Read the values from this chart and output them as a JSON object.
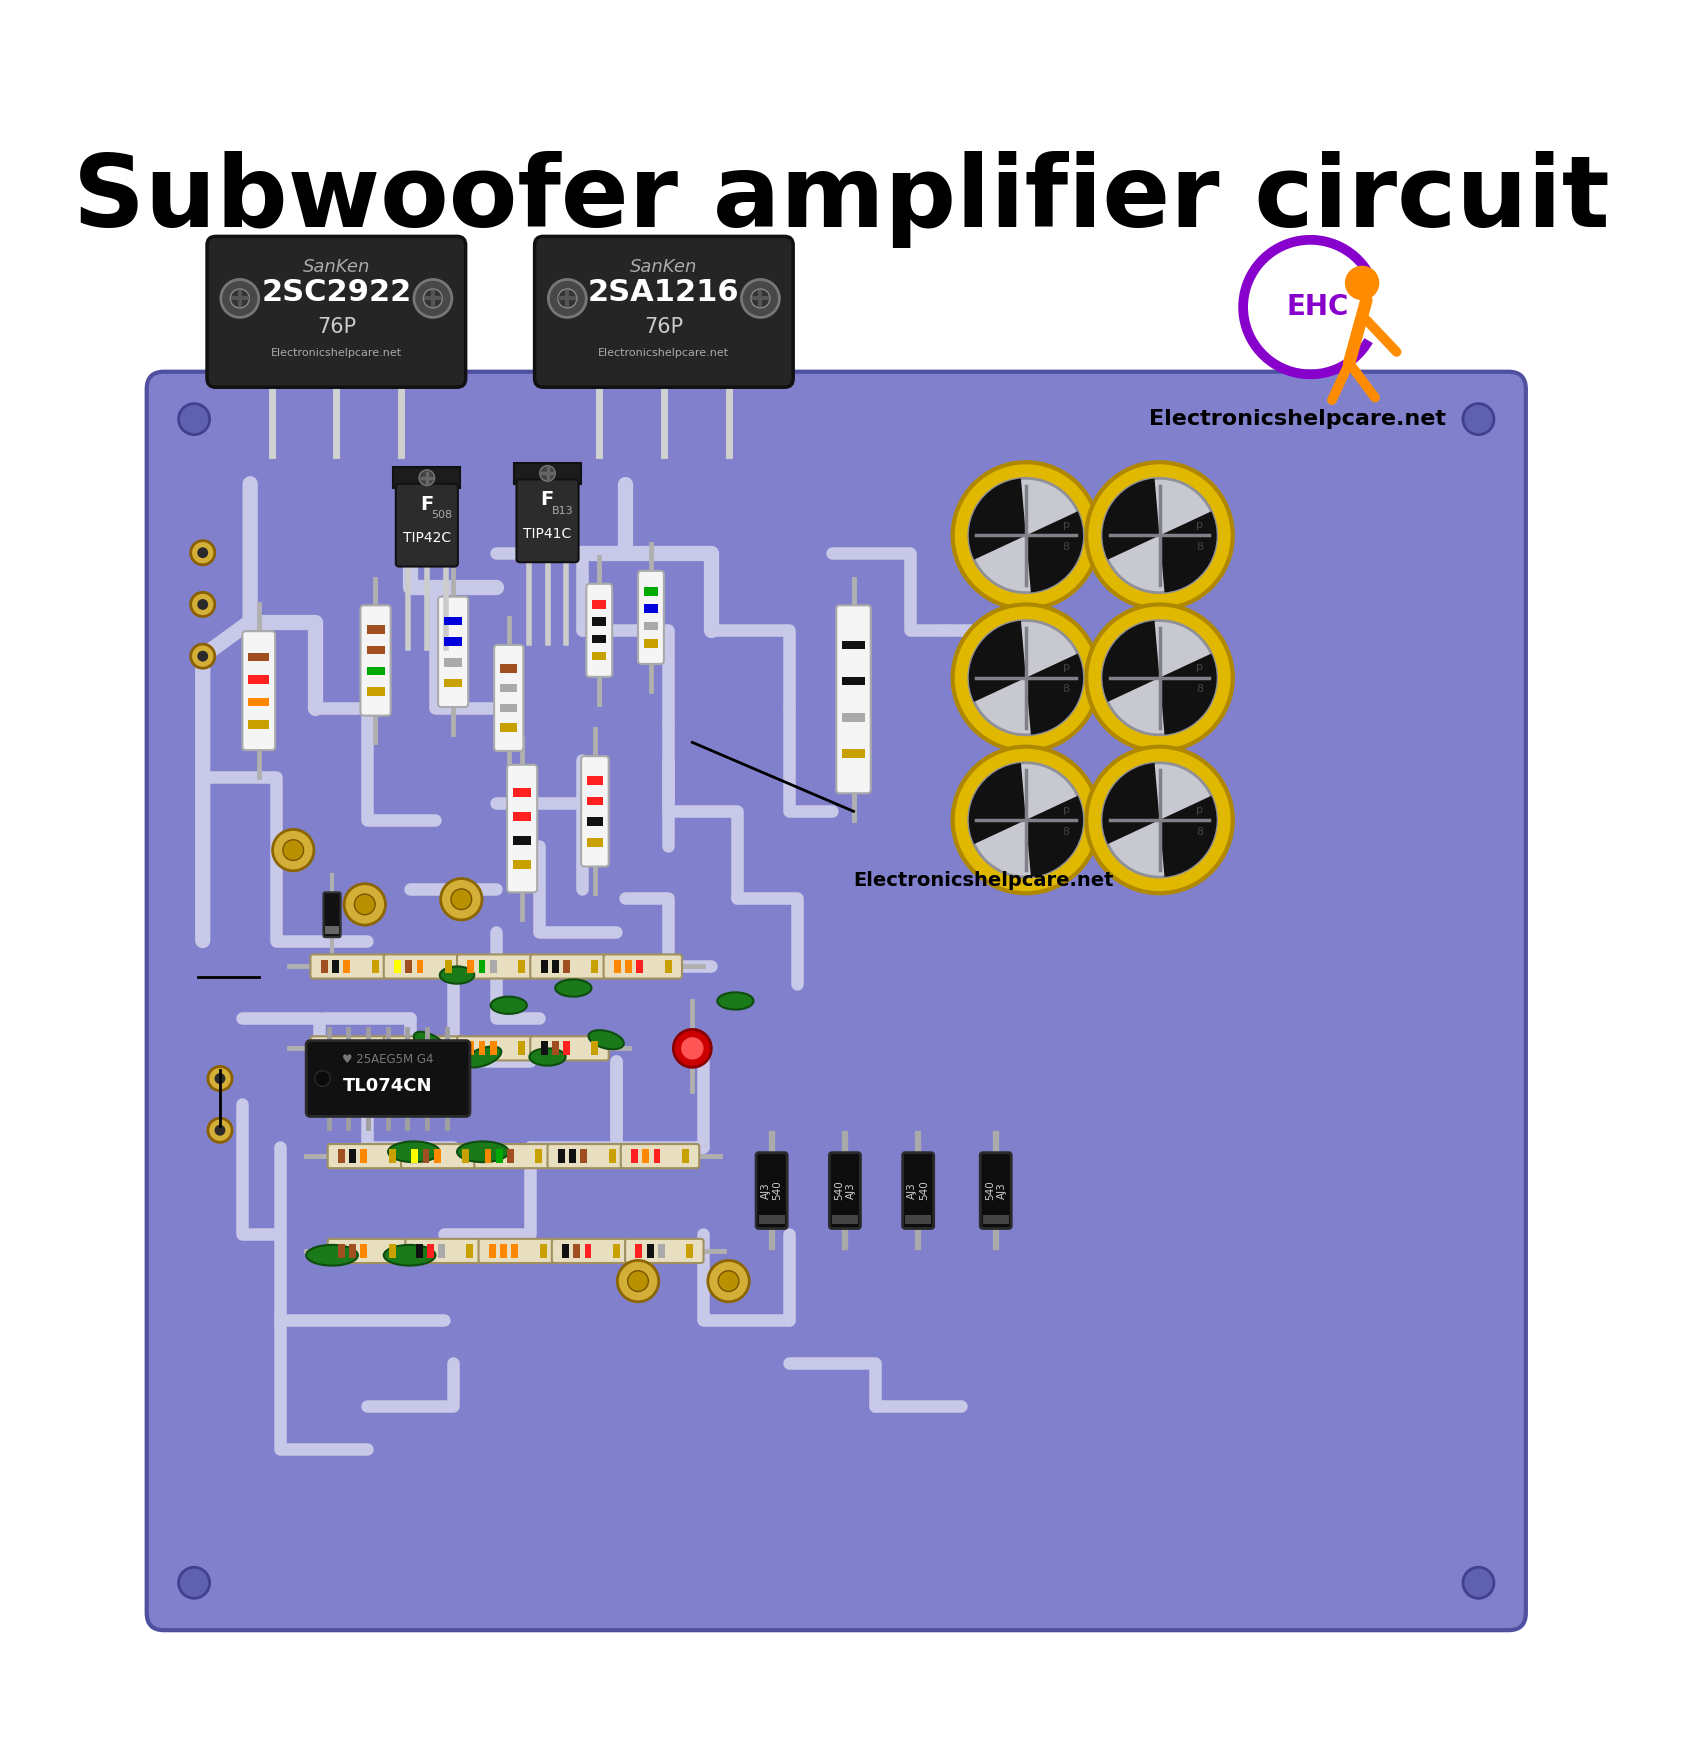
{
  "title": "Subwoofer amplifier circuit",
  "title_fontsize": 72,
  "bg_color": "#ffffff",
  "pcb_color": "#8080cc",
  "pcb_edge_color": "#5050a0",
  "trace_color": "#c8c8e8",
  "website1": "Electronicshelpcare.net",
  "website2": "Electronicshelpcare.net"
}
